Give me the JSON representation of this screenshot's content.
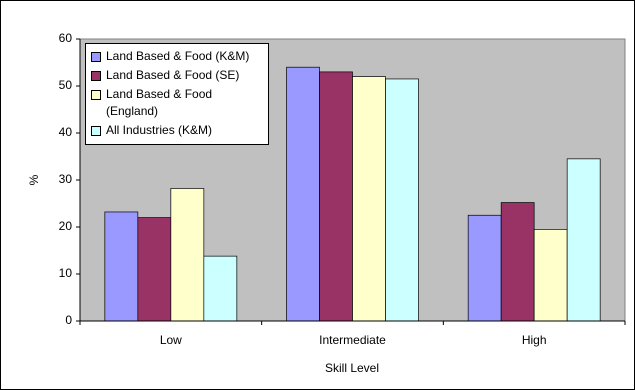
{
  "chart_data": {
    "type": "bar",
    "x_label": "Skill Level",
    "y_label": "%",
    "categories": [
      "Low",
      "Intermediate",
      "High"
    ],
    "series": [
      {
        "name": "Land Based & Food (K&M)",
        "color": "#9999ff",
        "values": [
          23.2,
          54,
          22.5
        ]
      },
      {
        "name": "Land Based & Food (SE)",
        "color": "#993366",
        "values": [
          22,
          53,
          25.2
        ]
      },
      {
        "name": "Land Based & Food (England)",
        "color": "#ffffcc",
        "values": [
          28.2,
          52,
          19.5
        ]
      },
      {
        "name": "All Industries (K&M)",
        "color": "#ccffff",
        "values": [
          13.8,
          51.5,
          34.5
        ]
      }
    ],
    "ylim": [
      0,
      60
    ],
    "yticks": [
      0,
      10,
      20,
      30,
      40,
      50,
      60
    ],
    "grid": false,
    "legend": "upper left"
  }
}
